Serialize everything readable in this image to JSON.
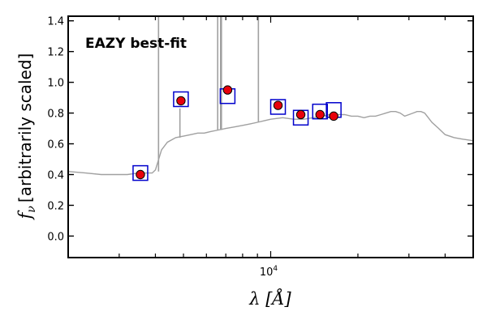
{
  "chart_data": {
    "type": "scatter",
    "title": "",
    "xlabel": "λ [Å]",
    "ylabel": "[arbitrarily scaled]",
    "ylabel_symbol": "f",
    "ylabel_subscript": "ν",
    "xscale": "log",
    "xlim": [
      2000,
      50000
    ],
    "ylim": [
      -0.14,
      1.43
    ],
    "x_tick_label": {
      "base": "10",
      "exp": "4"
    },
    "y_ticks": [
      "0.0",
      "0.2",
      "0.4",
      "0.6",
      "0.8",
      "1.0",
      "1.2",
      "1.4"
    ],
    "annotation": {
      "text": "EAZY best-fit",
      "color": "#ff0000"
    },
    "colors": {
      "template": "#a0a0a0",
      "observed_fill": "#e8000b",
      "observed_edge": "#000000",
      "model_box": "#0000cc"
    },
    "template_spectrum": [
      [
        2000,
        0.42
      ],
      [
        2300,
        0.41
      ],
      [
        2600,
        0.4
      ],
      [
        2900,
        0.4
      ],
      [
        3200,
        0.4
      ],
      [
        3500,
        0.41
      ],
      [
        3700,
        0.41
      ],
      [
        3900,
        0.41
      ],
      [
        4000,
        0.43
      ],
      [
        4200,
        0.56
      ],
      [
        4400,
        0.61
      ],
      [
        4700,
        0.64
      ],
      [
        5000,
        0.65
      ],
      [
        5300,
        0.66
      ],
      [
        5600,
        0.67
      ],
      [
        5900,
        0.67
      ],
      [
        6200,
        0.68
      ],
      [
        6600,
        0.69
      ],
      [
        7000,
        0.7
      ],
      [
        7500,
        0.71
      ],
      [
        8000,
        0.72
      ],
      [
        8500,
        0.73
      ],
      [
        9000,
        0.74
      ],
      [
        9500,
        0.75
      ],
      [
        10000,
        0.76
      ],
      [
        11000,
        0.77
      ],
      [
        12000,
        0.76
      ],
      [
        13000,
        0.76
      ],
      [
        14000,
        0.77
      ],
      [
        15000,
        0.78
      ],
      [
        16000,
        0.79
      ],
      [
        17000,
        0.79
      ],
      [
        18000,
        0.79
      ],
      [
        19000,
        0.78
      ],
      [
        20000,
        0.78
      ],
      [
        21000,
        0.77
      ],
      [
        22000,
        0.78
      ],
      [
        23000,
        0.78
      ],
      [
        24000,
        0.79
      ],
      [
        25000,
        0.8
      ],
      [
        26000,
        0.81
      ],
      [
        27000,
        0.81
      ],
      [
        28000,
        0.8
      ],
      [
        29000,
        0.78
      ],
      [
        30000,
        0.79
      ],
      [
        31000,
        0.8
      ],
      [
        32000,
        0.81
      ],
      [
        33000,
        0.81
      ],
      [
        34000,
        0.8
      ],
      [
        35000,
        0.77
      ],
      [
        36000,
        0.74
      ],
      [
        38000,
        0.7
      ],
      [
        40000,
        0.66
      ],
      [
        43000,
        0.64
      ],
      [
        46000,
        0.63
      ],
      [
        50000,
        0.62
      ]
    ],
    "emission_lines": [
      {
        "x": 4101,
        "top": 1.43,
        "base": 0.42
      },
      {
        "x": 4861,
        "top": 0.83,
        "base": 0.64
      },
      {
        "x": 6563,
        "top": 1.43,
        "base": 0.69
      },
      {
        "x": 6716,
        "top": 1.43,
        "base": 0.69
      },
      {
        "x": 6760,
        "top": 1.43,
        "base": 0.69
      },
      {
        "x": 9069,
        "top": 1.43,
        "base": 0.74
      }
    ],
    "observed": [
      {
        "x": 3550,
        "y": 0.4
      },
      {
        "x": 4900,
        "y": 0.88
      },
      {
        "x": 7100,
        "y": 0.95
      },
      {
        "x": 10600,
        "y": 0.85
      },
      {
        "x": 12700,
        "y": 0.79
      },
      {
        "x": 14800,
        "y": 0.79
      },
      {
        "x": 16500,
        "y": 0.78
      }
    ],
    "model": [
      {
        "x": 3550,
        "y": 0.41
      },
      {
        "x": 4900,
        "y": 0.89
      },
      {
        "x": 7100,
        "y": 0.91
      },
      {
        "x": 10600,
        "y": 0.84
      },
      {
        "x": 12700,
        "y": 0.77
      },
      {
        "x": 14800,
        "y": 0.81
      },
      {
        "x": 16500,
        "y": 0.82
      }
    ]
  }
}
